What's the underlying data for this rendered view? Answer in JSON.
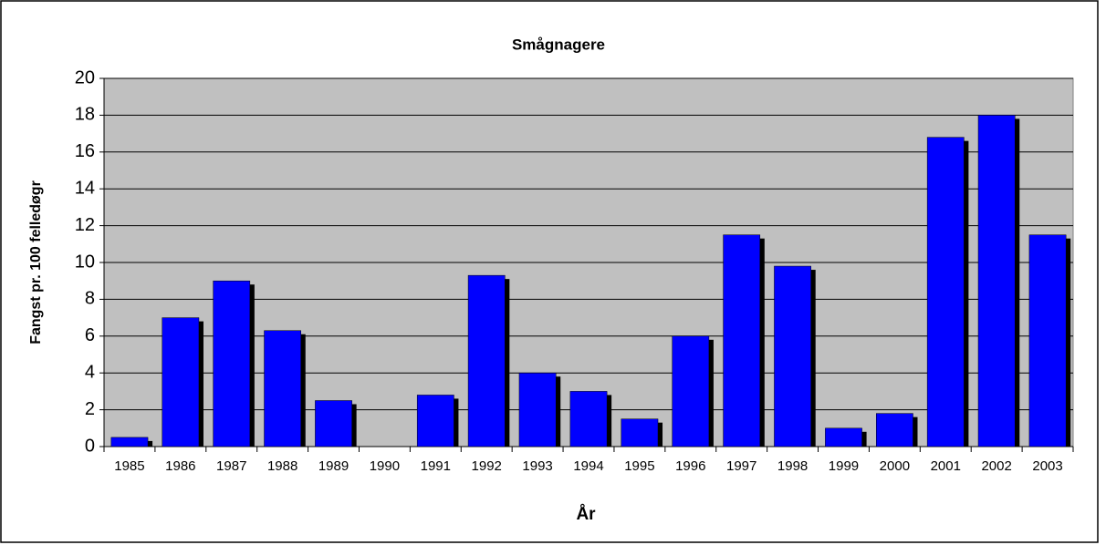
{
  "chart_data": {
    "type": "bar",
    "title": "Smågnagere",
    "x_label": "År",
    "y_label": "Fangst pr. 100 felledøgr",
    "categories": [
      "1985",
      "1986",
      "1987",
      "1988",
      "1989",
      "1990",
      "1991",
      "1992",
      "1993",
      "1994",
      "1995",
      "1996",
      "1997",
      "1998",
      "1999",
      "2000",
      "2001",
      "2002",
      "2003"
    ],
    "values": [
      0.5,
      7,
      9,
      6.3,
      2.5,
      0,
      2.8,
      9.3,
      4,
      3,
      1.5,
      6,
      11.5,
      9.8,
      1,
      1.8,
      16.8,
      18,
      11.5
    ],
    "color": "#0000ff",
    "ylim": [
      0,
      20
    ],
    "yticks": [
      0,
      2,
      4,
      6,
      8,
      10,
      12,
      14,
      16,
      18,
      20
    ],
    "grid": true
  }
}
